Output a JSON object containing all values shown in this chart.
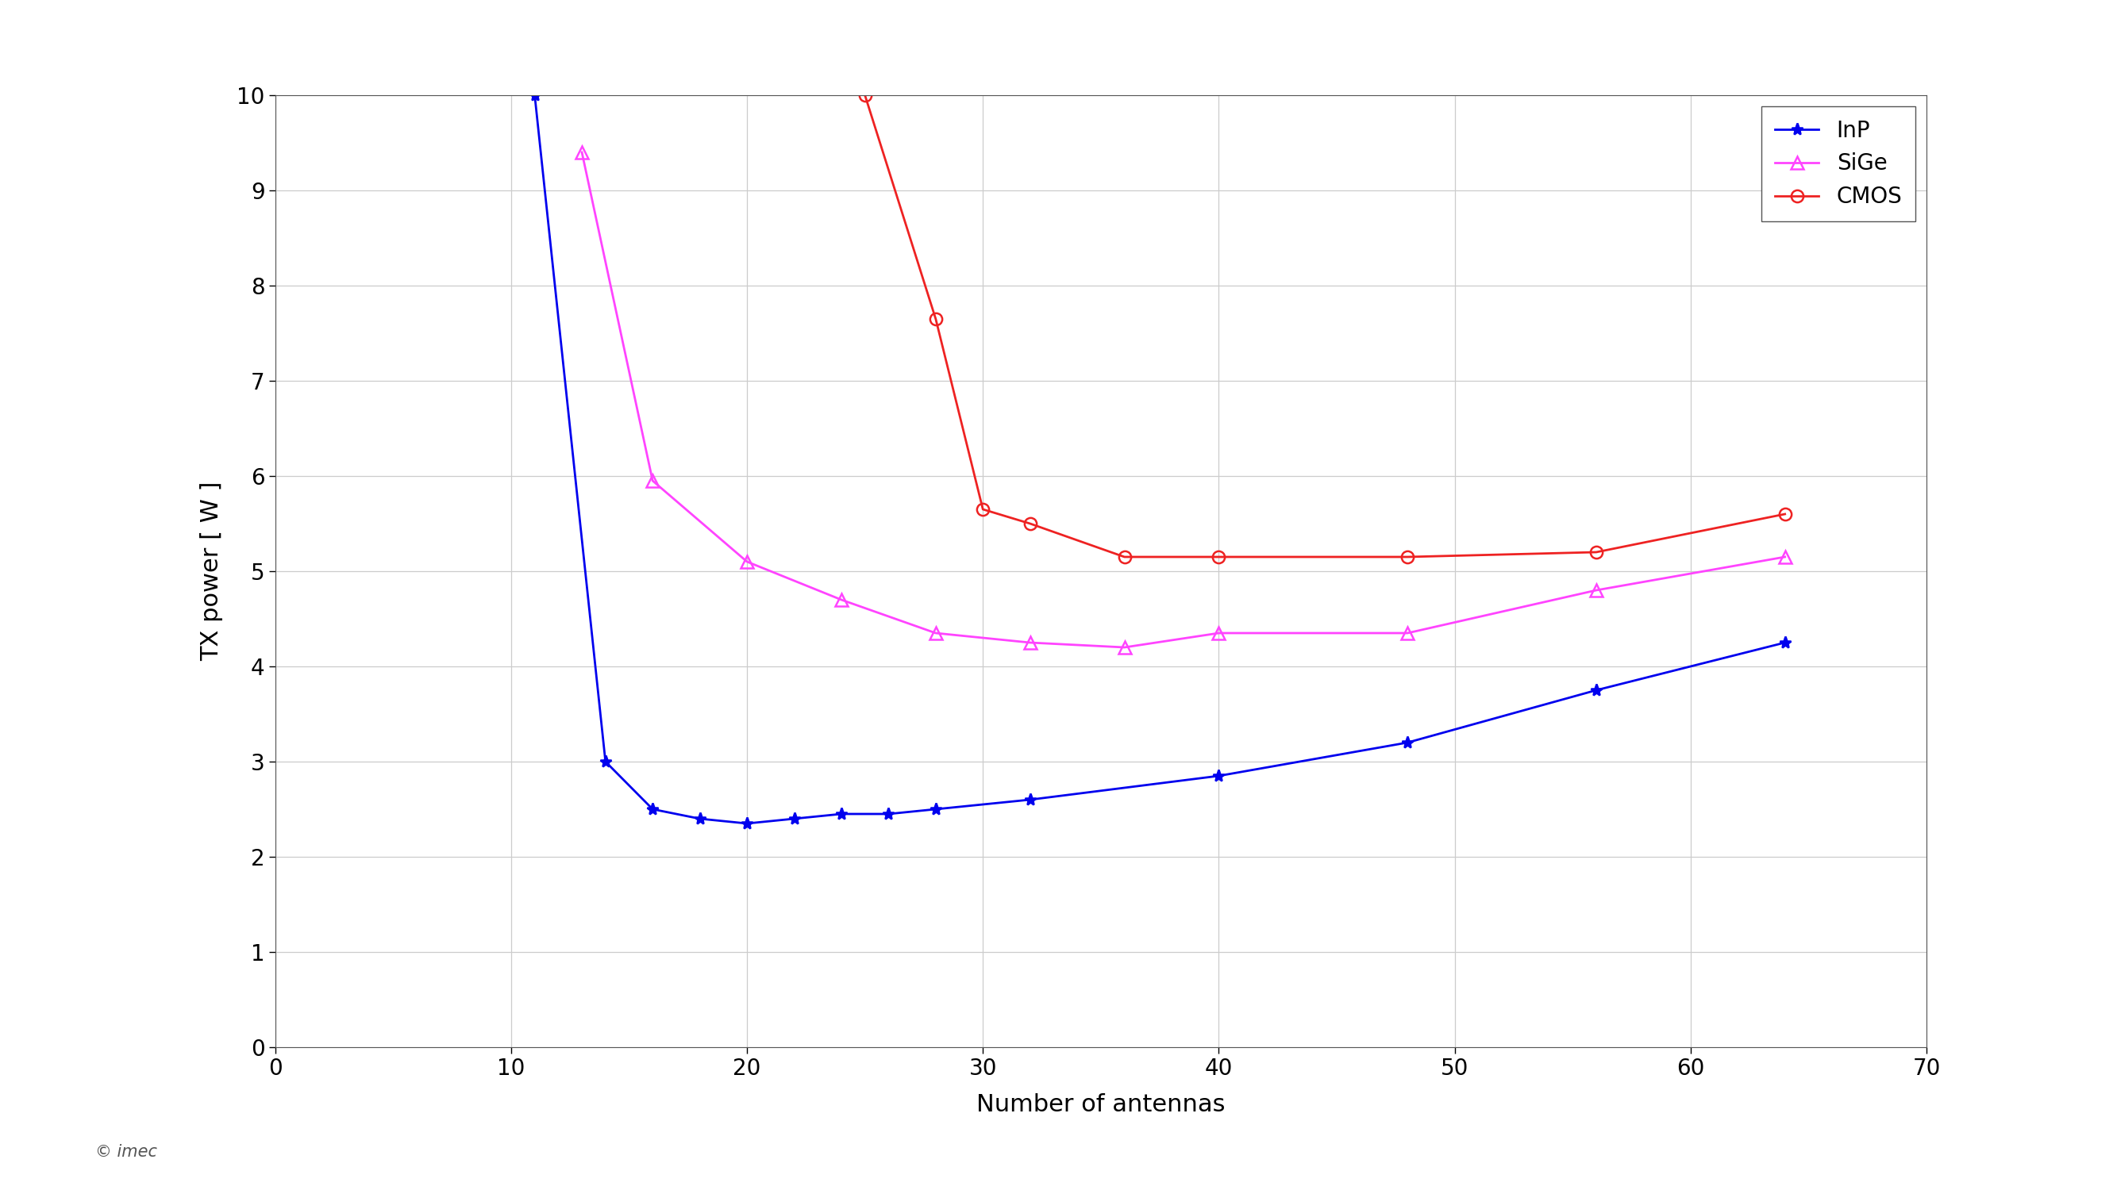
{
  "InP": {
    "x": [
      11,
      14,
      16,
      18,
      20,
      22,
      24,
      26,
      28,
      32,
      40,
      48,
      56,
      64
    ],
    "y": [
      10.0,
      3.0,
      2.5,
      2.4,
      2.35,
      2.4,
      2.45,
      2.45,
      2.5,
      2.6,
      2.85,
      3.2,
      3.75,
      4.25
    ],
    "color": "#0000EE",
    "marker": "*",
    "label": "InP"
  },
  "SiGe": {
    "x": [
      13,
      16,
      20,
      24,
      28,
      32,
      36,
      40,
      48,
      56,
      64
    ],
    "y": [
      9.4,
      5.95,
      5.1,
      4.7,
      4.35,
      4.25,
      4.2,
      4.35,
      4.35,
      4.8,
      5.15
    ],
    "color": "#FF44FF",
    "marker": "^",
    "label": "SiGe"
  },
  "CMOS": {
    "x": [
      25,
      28,
      30,
      32,
      36,
      40,
      48,
      56,
      64
    ],
    "y": [
      10.0,
      7.65,
      5.65,
      5.5,
      5.15,
      5.15,
      5.15,
      5.2,
      5.6
    ],
    "color": "#EE2222",
    "marker": "o",
    "label": "CMOS"
  },
  "title": "",
  "xlabel": "Number of antennas",
  "ylabel": "TX power [ W ]",
  "xlim": [
    0,
    70
  ],
  "ylim": [
    0,
    10
  ],
  "xticks": [
    0,
    10,
    20,
    30,
    40,
    50,
    60,
    70
  ],
  "yticks": [
    0,
    1,
    2,
    3,
    4,
    5,
    6,
    7,
    8,
    9,
    10
  ],
  "background_color": "#FFFFFF",
  "grid_color": "#CCCCCC",
  "copyright_text": "© imec",
  "legend_loc": "upper right",
  "marker_size": 11,
  "line_width": 2.0,
  "font_size_labels": 22,
  "font_size_ticks": 20,
  "font_size_legend": 20,
  "font_size_copyright": 15
}
